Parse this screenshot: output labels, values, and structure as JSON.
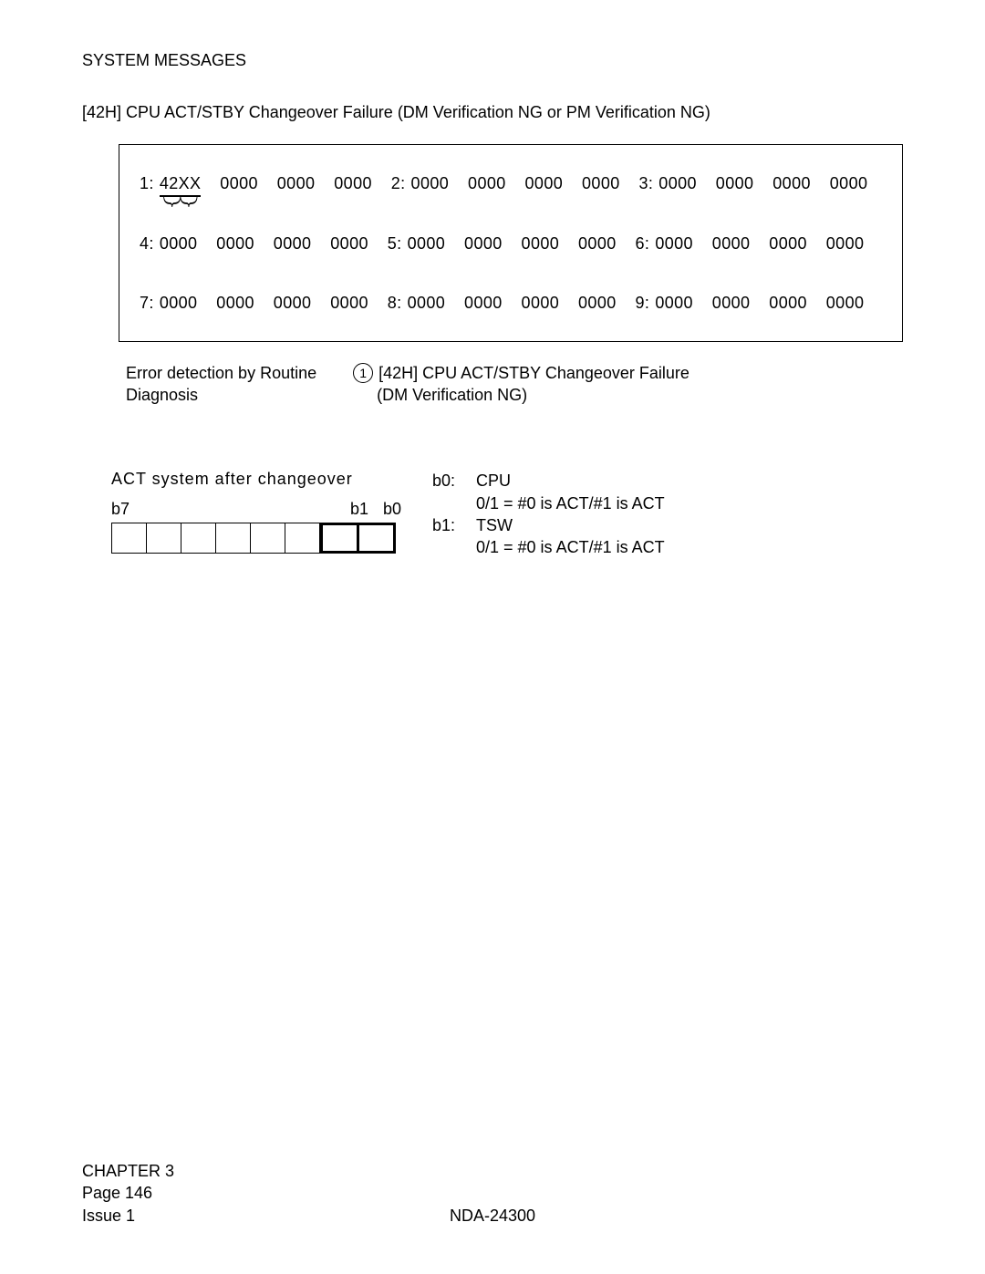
{
  "header": {
    "section": "SYSTEM MESSAGES",
    "title": "[42H] CPU ACT/STBY Changeover Failure (DM Verification NG or PM Verification NG)"
  },
  "databox": {
    "rows": [
      {
        "label": "1:",
        "first_word_special": true,
        "words": [
          "42XX",
          "0000",
          "0000",
          "0000"
        ],
        "next_label": "2:",
        "words2": [
          "0000",
          "0000",
          "0000",
          "0000"
        ],
        "next_label2": "3:",
        "words3": [
          "0000",
          "0000",
          "0000",
          "0000"
        ]
      },
      {
        "label": "4:",
        "first_word_special": false,
        "words": [
          "0000",
          "0000",
          "0000",
          "0000"
        ],
        "next_label": "5:",
        "words2": [
          "0000",
          "0000",
          "0000",
          "0000"
        ],
        "next_label2": "6:",
        "words3": [
          "0000",
          "0000",
          "0000",
          "0000"
        ]
      },
      {
        "label": "7:",
        "first_word_special": false,
        "words": [
          "0000",
          "0000",
          "0000",
          "0000"
        ],
        "next_label": "8:",
        "words2": [
          "0000",
          "0000",
          "0000",
          "0000"
        ],
        "next_label2": "9:",
        "words3": [
          "0000",
          "0000",
          "0000",
          "0000"
        ]
      }
    ]
  },
  "notes": {
    "left_line1": "Error detection by Routine",
    "left_line2": "Diagnosis",
    "right_line1": "[42H] CPU ACT/STBY Changeover Failure",
    "right_line2": "(DM Verification NG)",
    "marker": "1"
  },
  "act": {
    "caption": "ACT system after changeover",
    "b7": "b7",
    "b1": "b1",
    "b0": "b0",
    "bits": {
      "b0_label": "b0:",
      "b0_name": "CPU",
      "b0_desc": "0/1 = #0 is ACT/#1 is ACT",
      "b1_label": "b1:",
      "b1_name": "TSW",
      "b1_desc": "0/1 = #0 is ACT/#1 is ACT"
    }
  },
  "footer": {
    "chapter": "CHAPTER 3",
    "page": "Page 146",
    "issue": "Issue 1",
    "docnum": "NDA-24300"
  },
  "style": {
    "font_size_pt": 18,
    "brace_color": "#000000",
    "border_color": "#000000"
  }
}
